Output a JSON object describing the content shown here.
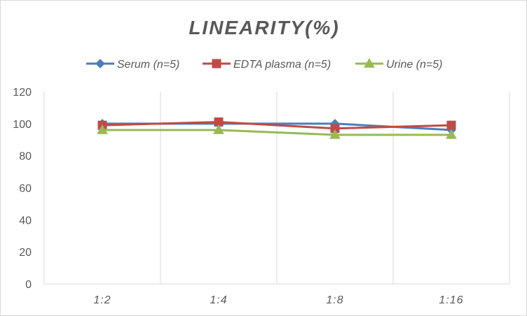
{
  "chart_data": {
    "type": "line",
    "title": "LINEARITY(%)",
    "categories": [
      "1:2",
      "1:4",
      "1:8",
      "1:16"
    ],
    "series": [
      {
        "name": "Serum (n=5)",
        "values": [
          100,
          100,
          100,
          96
        ],
        "color": "#4a7ebb",
        "marker": "diamond"
      },
      {
        "name": "EDTA plasma (n=5)",
        "values": [
          99,
          101,
          97,
          99
        ],
        "color": "#be4b48",
        "marker": "square"
      },
      {
        "name": "Urine (n=5)",
        "values": [
          96,
          96,
          93,
          93
        ],
        "color": "#98b954",
        "marker": "triangle"
      }
    ],
    "ylim": [
      0,
      120
    ],
    "yticks": [
      0,
      20,
      40,
      60,
      80,
      100,
      120
    ],
    "grid": "vertical",
    "legend_position": "top"
  }
}
